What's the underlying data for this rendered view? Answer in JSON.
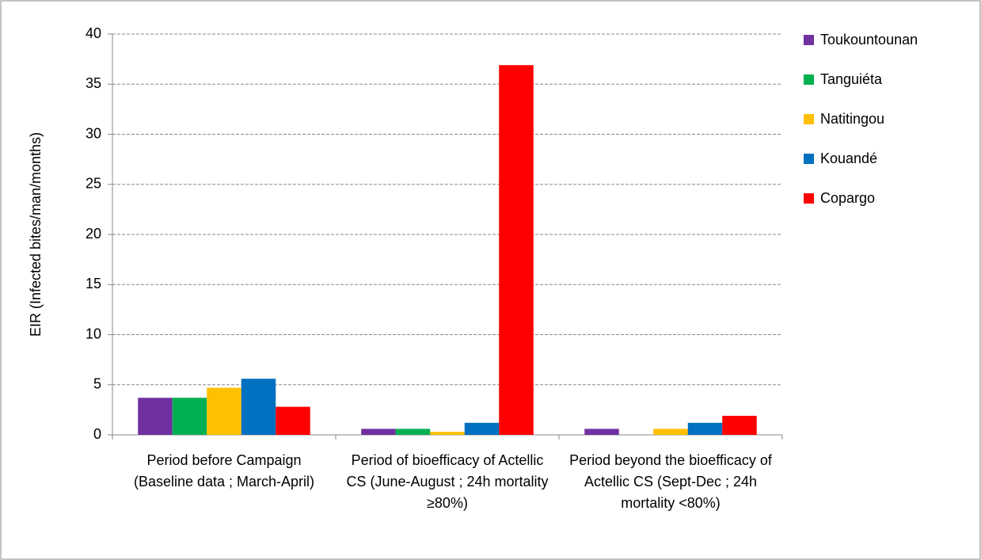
{
  "chart_data": {
    "type": "bar",
    "y_label": "EIR (Infected bites/man/months)",
    "categories": [
      "Period before Campaign (Baseline data ; March-April)",
      "Period of bioefficacy of Actellic CS (June-August ; 24h mortality ≥80%)",
      "Period beyond the bioefficacy of Actellic CS (Sept-Dec ; 24h mortality <80%)"
    ],
    "series": [
      {
        "name": "Toukountounan",
        "color": "#7030a0",
        "values": [
          3.7,
          0.6,
          0.6
        ]
      },
      {
        "name": "Tanguiéta",
        "color": "#00b050",
        "values": [
          3.7,
          0.6,
          0
        ]
      },
      {
        "name": "Natitingou",
        "color": "#ffc000",
        "values": [
          4.7,
          0.3,
          0.6
        ]
      },
      {
        "name": "Kouandé",
        "color": "#0070c0",
        "values": [
          5.6,
          1.2,
          1.2
        ]
      },
      {
        "name": "Copargo",
        "color": "#ff0000",
        "values": [
          2.8,
          36.9,
          1.9
        ]
      }
    ],
    "ylim": [
      0,
      40
    ],
    "yticks": [
      0,
      5,
      10,
      15,
      20,
      25,
      30,
      35,
      40
    ],
    "grid": true,
    "legend": "right"
  }
}
